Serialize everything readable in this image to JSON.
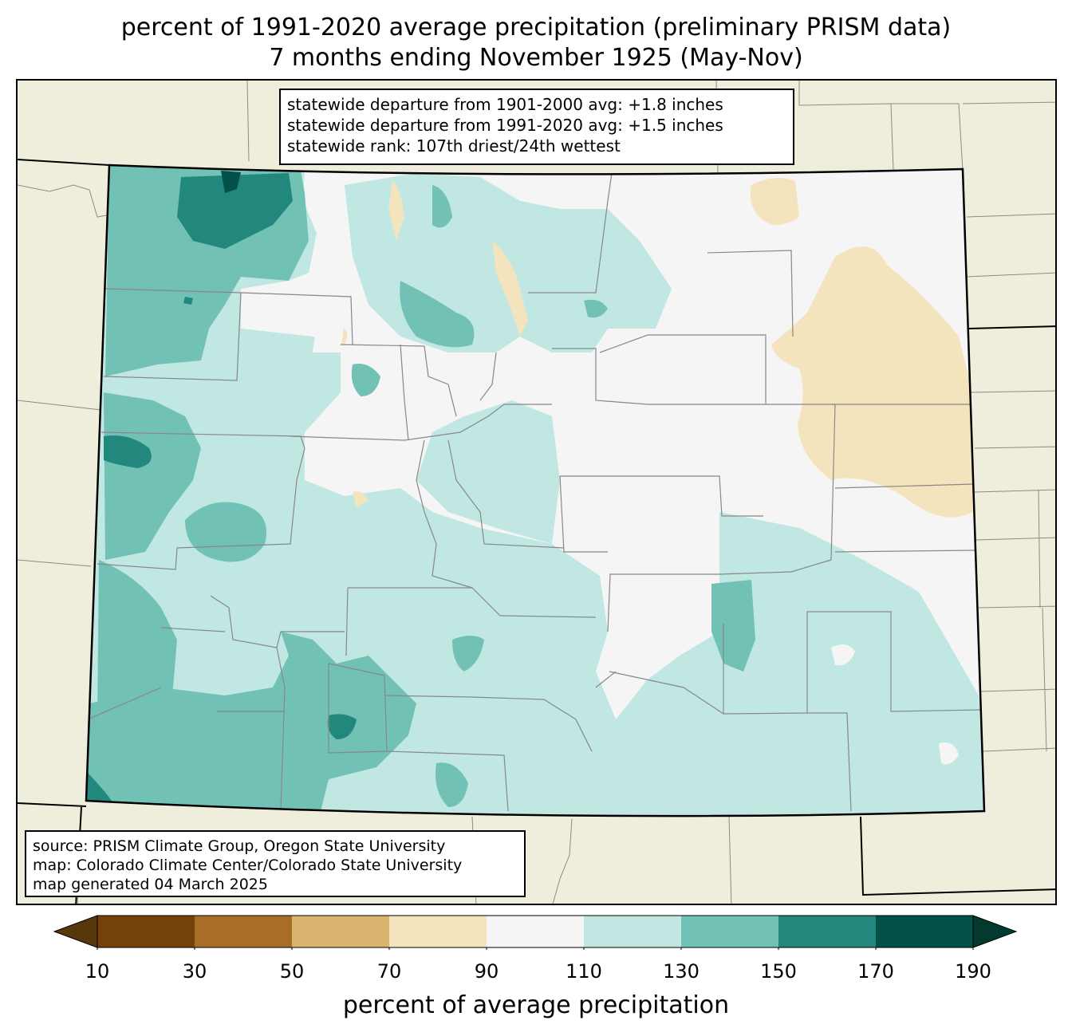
{
  "title_line1": "percent of 1991-2020 average precipitation (preliminary PRISM data)",
  "title_line2": "7 months ending November 1925 (May-Nov)",
  "stats": {
    "line1": "statewide departure from 1901-2000 avg: +1.8 inches",
    "line2": "statewide departure from 1991-2020 avg: +1.5 inches",
    "line3": "statewide rank: 107th driest/24th wettest"
  },
  "source": {
    "line1": "source: PRISM Climate Group, Oregon State University",
    "line2": "map: Colorado Climate Center/Colorado State University",
    "line3": "map generated 04 March 2025"
  },
  "colorbar": {
    "label": "percent of average precipitation",
    "ticks": [
      "10",
      "30",
      "50",
      "70",
      "90",
      "110",
      "130",
      "150",
      "170",
      "190"
    ],
    "colors": [
      "#744208",
      "#aa6d25",
      "#d9b46f",
      "#f4e4bd",
      "#f4f5f4",
      "#c0e7e2",
      "#71c1b5",
      "#22877d",
      "#025148"
    ],
    "under_color": "#56380c",
    "over_color": "#023a30"
  },
  "map_colors": {
    "background_land": "#efeedc",
    "state_fill": "#f4f5f4"
  }
}
